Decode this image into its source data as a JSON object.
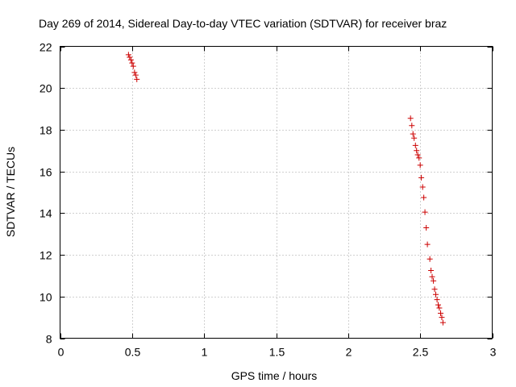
{
  "chart_data": {
    "type": "scatter",
    "title": "Day 269 of 2014, Sidereal Day-to-day VTEC variation (SDTVAR) for receiver braz",
    "xlabel": "GPS time / hours",
    "ylabel": "SDTVAR / TECUs",
    "xlim": [
      0,
      3
    ],
    "ylim": [
      8,
      22
    ],
    "xticks": [
      0,
      0.5,
      1,
      1.5,
      2,
      2.5,
      3
    ],
    "xtick_labels": [
      "0",
      "0.5",
      "1",
      "1.5",
      "2",
      "2.5",
      "3"
    ],
    "yticks": [
      8,
      10,
      12,
      14,
      16,
      18,
      20,
      22
    ],
    "ytick_labels": [
      "8",
      "10",
      "12",
      "14",
      "16",
      "18",
      "20",
      "22"
    ],
    "grid": true,
    "marker": "+",
    "color": "#cc0000",
    "series": [
      {
        "name": "SDTVAR",
        "points": [
          [
            0.475,
            21.6
          ],
          [
            0.483,
            21.48
          ],
          [
            0.492,
            21.35
          ],
          [
            0.5,
            21.2
          ],
          [
            0.508,
            21.05
          ],
          [
            0.517,
            20.75
          ],
          [
            0.525,
            20.62
          ],
          [
            0.533,
            20.42
          ],
          [
            2.433,
            18.55
          ],
          [
            2.442,
            18.2
          ],
          [
            2.45,
            17.8
          ],
          [
            2.458,
            17.6
          ],
          [
            2.467,
            17.25
          ],
          [
            2.475,
            17.0
          ],
          [
            2.483,
            16.8
          ],
          [
            2.492,
            16.65
          ],
          [
            2.5,
            16.3
          ],
          [
            2.508,
            15.7
          ],
          [
            2.517,
            15.25
          ],
          [
            2.525,
            14.75
          ],
          [
            2.533,
            14.05
          ],
          [
            2.542,
            13.3
          ],
          [
            2.55,
            12.5
          ],
          [
            2.567,
            11.8
          ],
          [
            2.575,
            11.25
          ],
          [
            2.583,
            10.95
          ],
          [
            2.592,
            10.75
          ],
          [
            2.6,
            10.35
          ],
          [
            2.608,
            10.1
          ],
          [
            2.617,
            9.85
          ],
          [
            2.625,
            9.6
          ],
          [
            2.633,
            9.45
          ],
          [
            2.642,
            9.2
          ],
          [
            2.65,
            9.0
          ],
          [
            2.658,
            8.75
          ]
        ]
      }
    ]
  }
}
